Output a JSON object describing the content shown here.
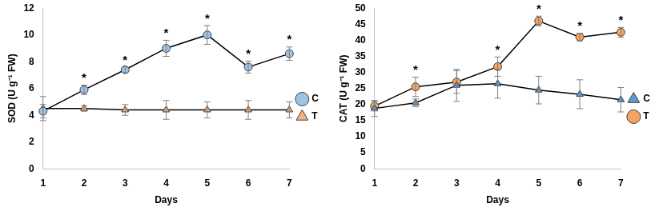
{
  "chart_data": [
    {
      "type": "line",
      "x_label": "Days",
      "y_label": "SOD (U g⁻¹ FW)",
      "categories": [
        1,
        2,
        3,
        4,
        5,
        6,
        7
      ],
      "ylim": [
        0,
        12
      ],
      "yticks": [
        0,
        2,
        4,
        6,
        8,
        10,
        12
      ],
      "grid": false,
      "legend": "right",
      "significance": [
        null,
        "*",
        "*",
        "*",
        "*",
        "*",
        "*"
      ],
      "series": [
        {
          "name": "C",
          "color": "#9dc3e6",
          "marker": "circle",
          "line_style": "solid",
          "values": [
            4.3,
            5.9,
            7.4,
            9.0,
            10.0,
            7.6,
            8.6
          ],
          "errors": [
            0.5,
            0.35,
            0.2,
            0.6,
            0.7,
            0.45,
            0.5
          ]
        },
        {
          "name": "T",
          "color": "#f4b183",
          "marker": "triangle",
          "line_style": "solid",
          "values": [
            4.5,
            4.5,
            4.4,
            4.4,
            4.4,
            4.4,
            4.4
          ],
          "errors": [
            0.9,
            0.2,
            0.4,
            0.7,
            0.6,
            0.7,
            0.6
          ]
        }
      ]
    },
    {
      "type": "line",
      "x_label": "Days",
      "y_label": "CAT (U g⁻¹ FW)",
      "categories": [
        1,
        2,
        3,
        4,
        5,
        6,
        7
      ],
      "ylim": [
        0,
        50
      ],
      "yticks": [
        0,
        5,
        10,
        15,
        20,
        25,
        30,
        35,
        40,
        45,
        50
      ],
      "grid": false,
      "legend": "right",
      "significance": [
        null,
        "*",
        null,
        "*",
        "*",
        "*",
        "*"
      ],
      "series": [
        {
          "name": "C",
          "color": "#5b9bd5",
          "marker": "triangle",
          "line_style": "solid",
          "values": [
            18.8,
            20.5,
            26.0,
            26.5,
            24.5,
            23.2,
            21.5
          ],
          "errors": [
            2.5,
            1.2,
            5.0,
            4.5,
            4.3,
            4.5,
            3.8
          ]
        },
        {
          "name": "T",
          "color": "#f4a460",
          "marker": "circle",
          "line_style": "solid",
          "values": [
            19.5,
            25.5,
            27.0,
            31.8,
            46.0,
            41.0,
            42.5
          ],
          "errors": [
            1.5,
            3.0,
            3.5,
            3.0,
            1.5,
            1.2,
            1.5
          ]
        }
      ]
    }
  ]
}
